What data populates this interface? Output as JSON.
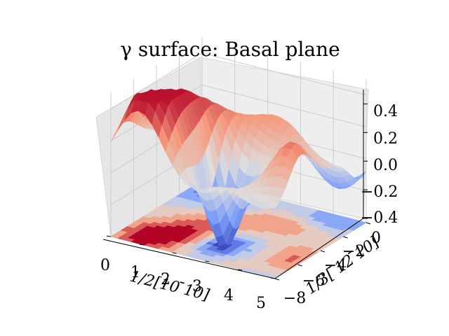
{
  "chart_data": {
    "type": "surface3d",
    "title": "γ surface: Basal plane",
    "xlabel": "1/2[10 ̄10]",
    "ylabel": "1/3[ ̄12 ̄10]",
    "zlabel": "",
    "xlim": [
      0,
      5
    ],
    "ylim": [
      -8,
      0
    ],
    "zlim": [
      -0.4,
      0.5
    ],
    "x_ticks": [
      "0",
      "1",
      "2",
      "3",
      "4",
      "5"
    ],
    "y_ticks": [
      "0",
      "−2",
      "−4",
      "−6",
      "−8"
    ],
    "z_ticks": [
      "0.4",
      "0.2",
      "0.0",
      "−0.2",
      "−0.4"
    ],
    "colormap": "coolwarm",
    "contour_offset_z": -0.4,
    "grid": true
  }
}
